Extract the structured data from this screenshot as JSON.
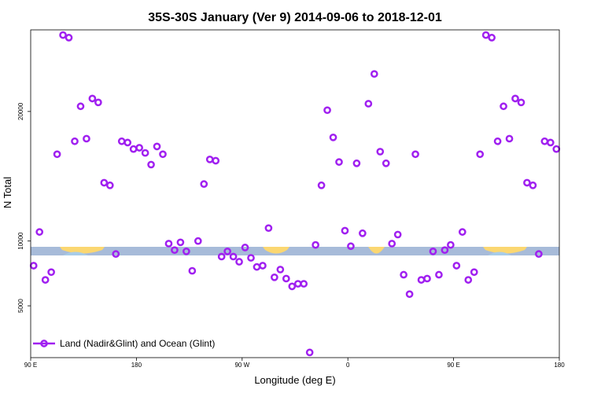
{
  "chart_data": {
    "type": "scatter",
    "title": "35S-30S January (Ver 9)   2014-09-06 to 2018-12-01",
    "xlabel": "Longitude (deg E)",
    "ylabel": "N Total",
    "x_domain": [
      0,
      450
    ],
    "ylim": [
      1000,
      26300
    ],
    "x_ticks": [
      {
        "value": 0,
        "label": "90 E"
      },
      {
        "value": 90,
        "label": "180"
      },
      {
        "value": 180,
        "label": "90 W"
      },
      {
        "value": 270,
        "label": "0"
      },
      {
        "value": 360,
        "label": "90 E"
      },
      {
        "value": 450,
        "label": "180"
      }
    ],
    "y_ticks": [
      {
        "value": 5000,
        "label": "5000"
      },
      {
        "value": 10000,
        "label": "10000"
      },
      {
        "value": 20000,
        "label": "20000"
      }
    ],
    "series": [
      {
        "name": "Land (Nadir&Glint) and Ocean (Glint)",
        "color": "#a020f0",
        "x": [
          2.5,
          7.5,
          12.5,
          17.5,
          22.5,
          27.5,
          32.5,
          37.5,
          42.5,
          47.5,
          52.5,
          57.5,
          62.5,
          67.5,
          72.5,
          77.5,
          82.5,
          87.5,
          92.5,
          97.5,
          102.5,
          107.5,
          112.5,
          117.5,
          122.5,
          127.5,
          132.5,
          137.5,
          142.5,
          147.5,
          152.5,
          157.5,
          162.5,
          167.5,
          172.5,
          177.5,
          182.5,
          187.5,
          192.5,
          197.5,
          202.5,
          207.5,
          212.5,
          217.5,
          222.5,
          227.5,
          232.5,
          237.5,
          242.5,
          247.5,
          252.5,
          257.5,
          262.5,
          267.5,
          272.5,
          277.5,
          282.5,
          287.5,
          292.5,
          297.5,
          302.5,
          307.5,
          312.5,
          317.5,
          322.5,
          327.5,
          332.5,
          337.5,
          342.5,
          347.5,
          352.5,
          357.5,
          362.5,
          367.5,
          372.5,
          377.5,
          382.5,
          387.5,
          392.5,
          397.5,
          402.5,
          407.5,
          412.5,
          417.5,
          422.5,
          427.5,
          432.5,
          437.5,
          442.5,
          447.5
        ],
        "y": [
          8100,
          10700,
          7000,
          7600,
          16700,
          25900,
          25700,
          17700,
          20400,
          17900,
          21000,
          20700,
          14500,
          14300,
          9000,
          17700,
          17600,
          17100,
          17200,
          16800,
          15900,
          17300,
          16700,
          9800,
          9300,
          9900,
          9200,
          7700,
          10000,
          14400,
          16300,
          16200,
          8800,
          9200,
          8800,
          8400,
          9500,
          8700,
          8000,
          8100,
          11000,
          7200,
          7800,
          7100,
          6500,
          6700,
          6700,
          1400,
          9700,
          14300,
          20100,
          18000,
          16100,
          10800,
          9600,
          16000,
          10600,
          20600,
          22900,
          16900,
          16000,
          9800,
          10500,
          7400,
          5900,
          16700,
          7000,
          7100,
          9200,
          7400,
          9300,
          9700,
          8100,
          10700,
          7000,
          7600,
          16700,
          25900,
          25700,
          17700,
          20400,
          17900,
          21000,
          20700,
          14500,
          14300,
          9000,
          17700,
          17600,
          17100
        ]
      }
    ],
    "legend": {
      "label": "Land (Nadir&Glint) and Ocean (Glint)",
      "position": "bottom-left"
    },
    "map_strip": {
      "ocean_color": "#a7bbd9",
      "land_color": "#fbd771",
      "land_shadow_color": "#a8cce8"
    }
  }
}
